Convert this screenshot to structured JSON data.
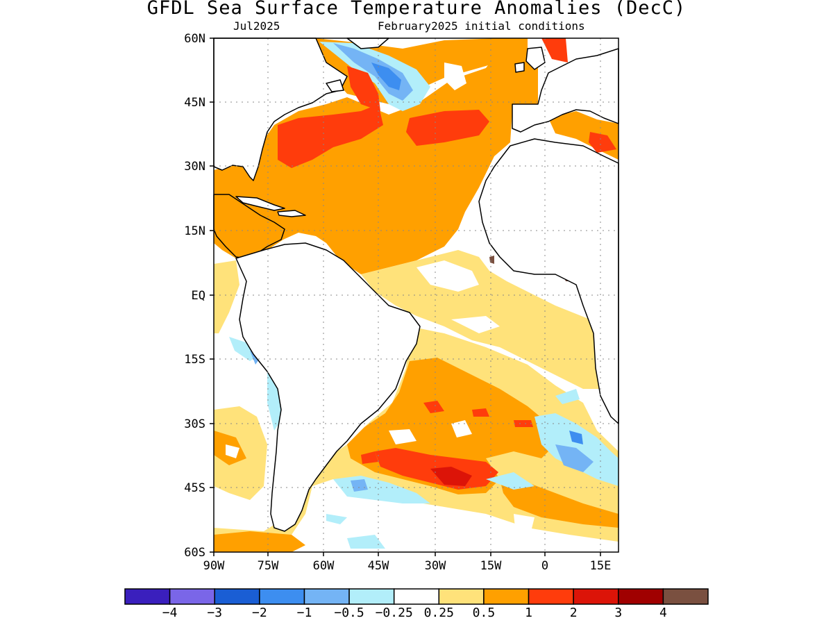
{
  "title": "GFDL Sea Surface Temperature Anomalies (DecC)",
  "valid_month": "Jul2025",
  "init_label": "February2025 initial conditions",
  "lat_labels": [
    "60N",
    "45N",
    "30N",
    "15N",
    "EQ",
    "15S",
    "30S",
    "45S",
    "60S"
  ],
  "lon_labels": [
    "90W",
    "75W",
    "60W",
    "45W",
    "30W",
    "15W",
    "0",
    "15E"
  ],
  "colorbar": {
    "colors": [
      "#3a1fbd",
      "#7a66e8",
      "#1a5ed4",
      "#3d8ef0",
      "#74b4f5",
      "#b2eefa",
      "#ffffff",
      "#ffe27a",
      "#ffa000",
      "#ff3c0c",
      "#dc1408",
      "#a00000",
      "#7a5040"
    ],
    "labels": [
      "-4",
      "-3",
      "-2",
      "-1",
      "-0.5",
      "-0.25",
      "0.25",
      "0.5",
      "1",
      "2",
      "3",
      "4"
    ]
  },
  "chart_data": {
    "type": "heatmap",
    "variable": "Sea Surface Temperature Anomalies (DecC)",
    "lon_range": [
      -90,
      18
    ],
    "lat_range": [
      -60,
      60
    ],
    "anomaly_regions": [
      {
        "region": "Tropical and subtropical North Atlantic",
        "anomaly": "0.5 to 1"
      },
      {
        "region": "Central North Atlantic near 40N",
        "anomaly": "1 to 2"
      },
      {
        "region": "Off Newfoundland / Labrador",
        "anomaly": "-2 to -0.5"
      },
      {
        "region": "Equatorial Atlantic",
        "anomaly": "0.25 to 0.5"
      },
      {
        "region": "South Atlantic 25S-35S",
        "anomaly": "0.5 to 1"
      },
      {
        "region": "South Atlantic near 40S",
        "anomaly": "1 to 3"
      },
      {
        "region": "Southeast Atlantic off southern Africa",
        "anomaly": "-1 to -0.25"
      },
      {
        "region": "Southeast Pacific off Chile",
        "anomaly": "-0.5 to 0.5"
      }
    ]
  }
}
